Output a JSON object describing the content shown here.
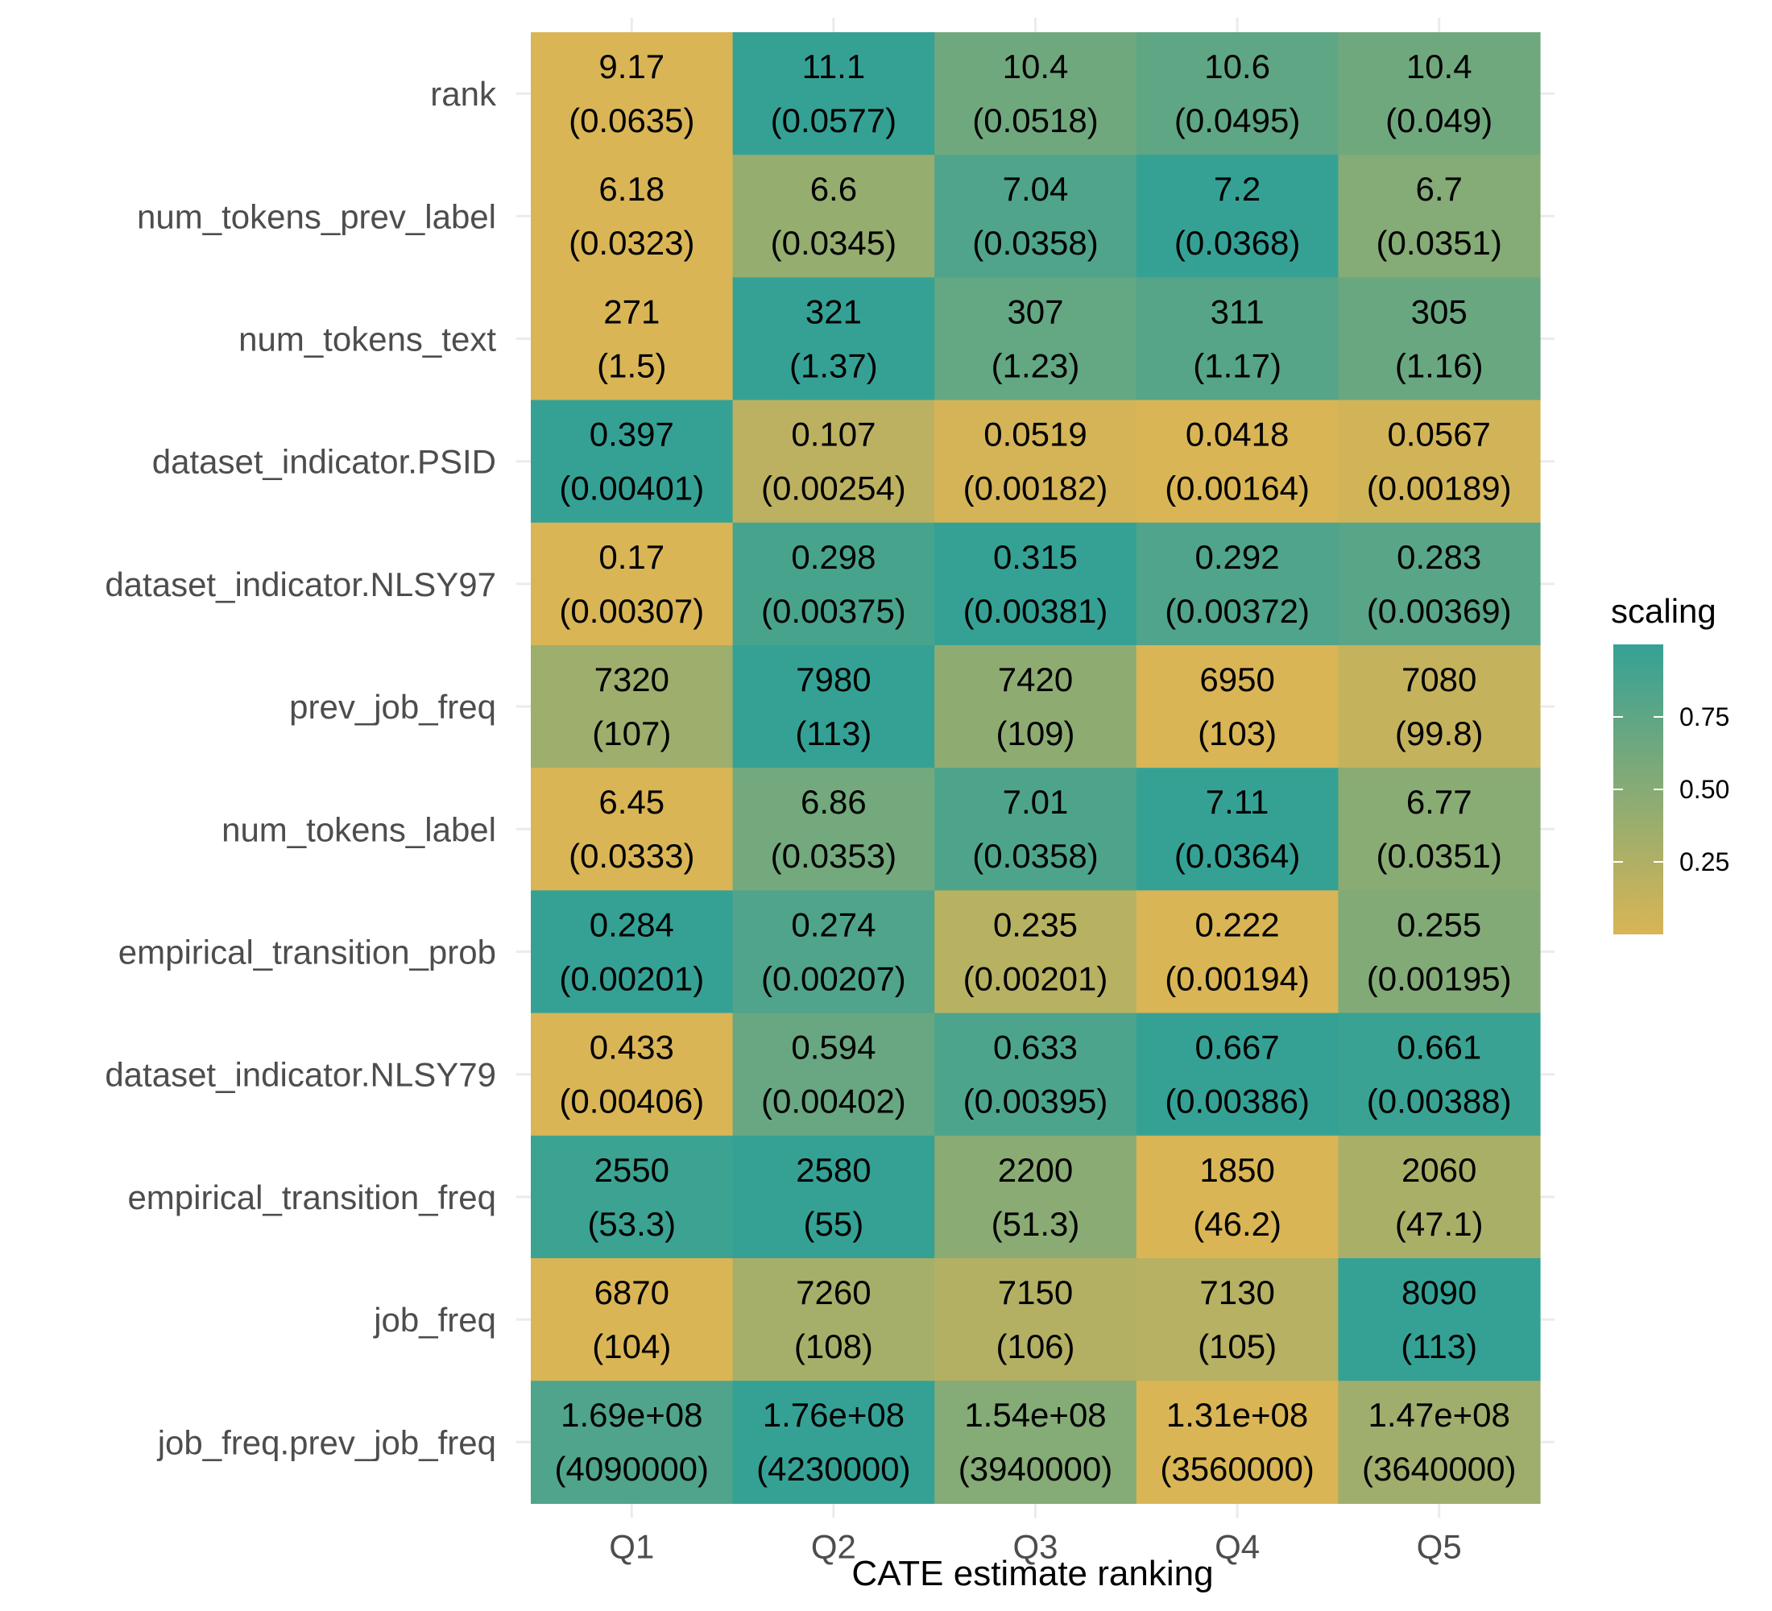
{
  "chart_data": {
    "type": "heatmap",
    "title": "",
    "xlabel": "CATE estimate ranking",
    "ylabel": "",
    "categories": [
      "Q1",
      "Q2",
      "Q3",
      "Q4",
      "Q5"
    ],
    "rows": [
      {
        "name": "rank",
        "values": [
          "9.17",
          "11.1",
          "10.4",
          "10.6",
          "10.4"
        ],
        "se": [
          "(0.0635)",
          "(0.0577)",
          "(0.0518)",
          "(0.0495)",
          "(0.049)"
        ]
      },
      {
        "name": "num_tokens_prev_label",
        "values": [
          "6.18",
          "6.6",
          "7.04",
          "7.2",
          "6.7"
        ],
        "se": [
          "(0.0323)",
          "(0.0345)",
          "(0.0358)",
          "(0.0368)",
          "(0.0351)"
        ]
      },
      {
        "name": "num_tokens_text",
        "values": [
          "271",
          "321",
          "307",
          "311",
          "305"
        ],
        "se": [
          "(1.5)",
          "(1.37)",
          "(1.23)",
          "(1.17)",
          "(1.16)"
        ]
      },
      {
        "name": "dataset_indicator.PSID",
        "values": [
          "0.397",
          "0.107",
          "0.0519",
          "0.0418",
          "0.0567"
        ],
        "se": [
          "(0.00401)",
          "(0.00254)",
          "(0.00182)",
          "(0.00164)",
          "(0.00189)"
        ]
      },
      {
        "name": "dataset_indicator.NLSY97",
        "values": [
          "0.17",
          "0.298",
          "0.315",
          "0.292",
          "0.283"
        ],
        "se": [
          "(0.00307)",
          "(0.00375)",
          "(0.00381)",
          "(0.00372)",
          "(0.00369)"
        ]
      },
      {
        "name": "prev_job_freq",
        "values": [
          "7320",
          "7980",
          "7420",
          "6950",
          "7080"
        ],
        "se": [
          "(107)",
          "(113)",
          "(109)",
          "(103)",
          "(99.8)"
        ]
      },
      {
        "name": "num_tokens_label",
        "values": [
          "6.45",
          "6.86",
          "7.01",
          "7.11",
          "6.77"
        ],
        "se": [
          "(0.0333)",
          "(0.0353)",
          "(0.0358)",
          "(0.0364)",
          "(0.0351)"
        ]
      },
      {
        "name": "empirical_transition_prob",
        "values": [
          "0.284",
          "0.274",
          "0.235",
          "0.222",
          "0.255"
        ],
        "se": [
          "(0.00201)",
          "(0.00207)",
          "(0.00201)",
          "(0.00194)",
          "(0.00195)"
        ]
      },
      {
        "name": "dataset_indicator.NLSY79",
        "values": [
          "0.433",
          "0.594",
          "0.633",
          "0.667",
          "0.661"
        ],
        "se": [
          "(0.00406)",
          "(0.00402)",
          "(0.00395)",
          "(0.00386)",
          "(0.00388)"
        ]
      },
      {
        "name": "empirical_transition_freq",
        "values": [
          "2550",
          "2580",
          "2200",
          "1850",
          "2060"
        ],
        "se": [
          "(53.3)",
          "(55)",
          "(51.3)",
          "(46.2)",
          "(47.1)"
        ]
      },
      {
        "name": "job_freq",
        "values": [
          "6870",
          "7260",
          "7150",
          "7130",
          "8090"
        ],
        "se": [
          "(104)",
          "(108)",
          "(106)",
          "(105)",
          "(113)"
        ]
      },
      {
        "name": "job_freq.prev_job_freq",
        "values": [
          "1.69e+08",
          "1.76e+08",
          "1.54e+08",
          "1.31e+08",
          "1.47e+08"
        ],
        "se": [
          "(4090000)",
          "(4230000)",
          "(3940000)",
          "(3560000)",
          "(3640000)"
        ]
      }
    ],
    "legend": {
      "title": "scaling",
      "position": "right",
      "ticks": [
        "0.25",
        "0.50",
        "0.75"
      ],
      "range": [
        0.0,
        1.0
      ],
      "color_low": "#d9b555",
      "color_high": "#35a195"
    },
    "grid": true
  }
}
